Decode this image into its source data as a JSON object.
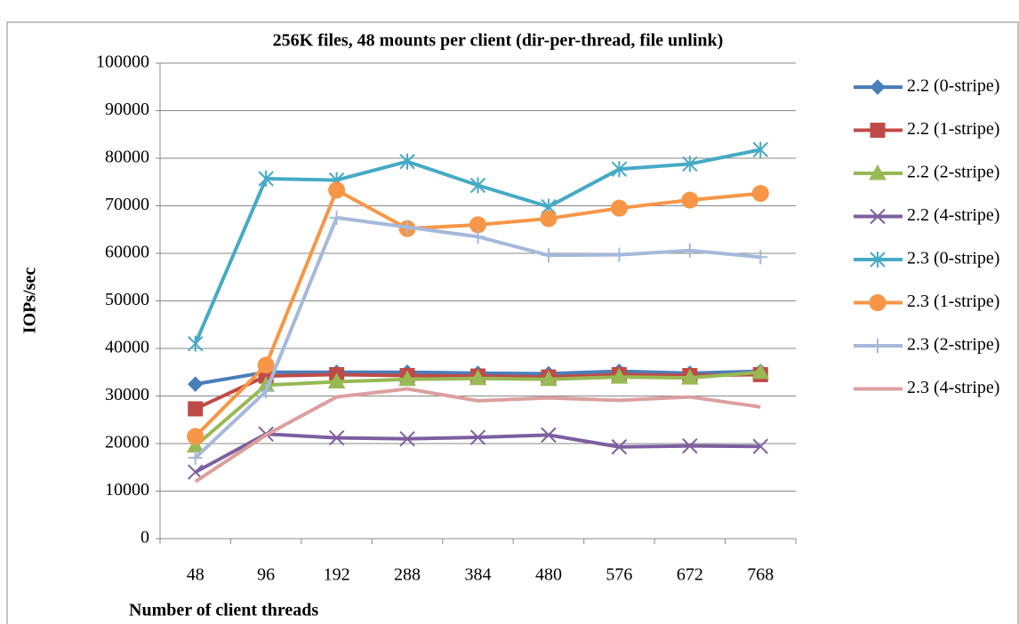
{
  "chart_data": {
    "type": "line",
    "title": "256K files, 48 mounts per client (dir-per-thread, file unlink)",
    "x_label": "Number of client threads",
    "y_label": "IOPs/sec",
    "categories": [
      "48",
      "96",
      "192",
      "288",
      "384",
      "480",
      "576",
      "672",
      "768"
    ],
    "ylim": [
      0,
      100000
    ],
    "yticks": [
      0,
      10000,
      20000,
      30000,
      40000,
      50000,
      60000,
      70000,
      80000,
      90000,
      100000
    ],
    "grid": true,
    "legend": "right",
    "series": [
      {
        "name": "2.2 (0-stripe)",
        "color": "#4a7ebb",
        "marker": "diamond",
        "values": [
          32500,
          35000,
          35000,
          35000,
          34800,
          34700,
          35200,
          34800,
          35200
        ]
      },
      {
        "name": "2.2 (1-stripe)",
        "color": "#be4b48",
        "marker": "square",
        "values": [
          27300,
          34200,
          34500,
          34300,
          34200,
          34000,
          34500,
          34300,
          34500
        ]
      },
      {
        "name": "2.2 (2-stripe)",
        "color": "#98b954",
        "marker": "triangle",
        "values": [
          19500,
          32300,
          33000,
          33500,
          33700,
          33500,
          34000,
          33800,
          35000
        ]
      },
      {
        "name": "2.2 (4-stripe)",
        "color": "#7d5fa0",
        "marker": "x",
        "values": [
          14000,
          22000,
          21200,
          21000,
          21300,
          21800,
          19300,
          19500,
          19400
        ]
      },
      {
        "name": "2.3 (0-stripe)",
        "color": "#46aac5",
        "marker": "star",
        "values": [
          41000,
          75700,
          75400,
          79300,
          74300,
          69800,
          77700,
          78800,
          81800
        ]
      },
      {
        "name": "2.3 (1-stripe)",
        "color": "#f79646",
        "marker": "circle",
        "values": [
          21500,
          36500,
          73300,
          65200,
          66000,
          67300,
          69500,
          71200,
          72600
        ]
      },
      {
        "name": "2.3 (2-stripe)",
        "color": "#a5b9db",
        "marker": "plus",
        "values": [
          17000,
          31000,
          67500,
          65500,
          63500,
          59600,
          59700,
          60600,
          59200
        ]
      },
      {
        "name": "2.3 (4-stripe)",
        "color": "#dba09e",
        "marker": "none",
        "values": [
          12000,
          21800,
          29800,
          31500,
          29000,
          29600,
          29100,
          29800,
          27700
        ]
      }
    ]
  }
}
